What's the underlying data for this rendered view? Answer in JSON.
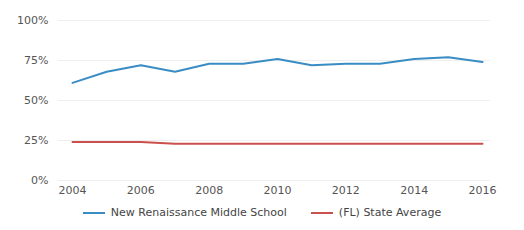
{
  "chart_data": {
    "type": "line",
    "x": [
      2004,
      2005,
      2006,
      2007,
      2008,
      2009,
      2010,
      2011,
      2012,
      2013,
      2014,
      2015,
      2016
    ],
    "xlim": [
      2004,
      2016
    ],
    "xticks": [
      2004,
      2006,
      2008,
      2010,
      2012,
      2014,
      2016
    ],
    "ylim": [
      0,
      100
    ],
    "yticks": [
      {
        "value": 0,
        "label": "0%"
      },
      {
        "value": 25,
        "label": "25%"
      },
      {
        "value": 50,
        "label": "50%"
      },
      {
        "value": 75,
        "label": "75%"
      },
      {
        "value": 100,
        "label": "100%"
      }
    ],
    "grid": true,
    "legend": "bottom",
    "series": [
      {
        "name": "New Renaissance Middle School",
        "color": "#3a8dc4",
        "values": [
          61,
          68,
          72,
          68,
          73,
          73,
          76,
          72,
          73,
          73,
          76,
          77,
          74
        ]
      },
      {
        "name": "(FL) State Average",
        "color": "#c9504c",
        "values": [
          24,
          24,
          24,
          23,
          23,
          23,
          23,
          23,
          23,
          23,
          23,
          23,
          23
        ]
      }
    ]
  }
}
